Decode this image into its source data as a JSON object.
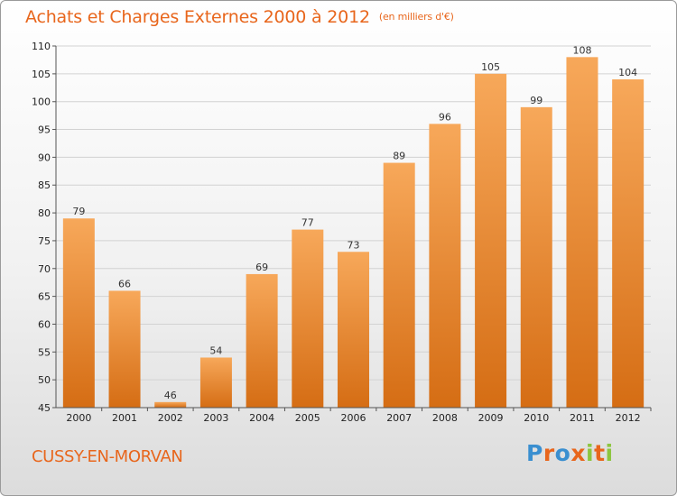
{
  "header": {
    "title": "Achats et Charges Externes 2000 à 2012",
    "subtitle": "(en milliers d'€)"
  },
  "footer": {
    "commune": "CUSSY-EN-MORVAN",
    "logo_letters": [
      "P",
      "r",
      "o",
      "x",
      "i",
      "t",
      "i"
    ],
    "logo_colors": [
      "#3a8fd0",
      "#e8661c",
      "#3a8fd0",
      "#e8661c",
      "#8cc63f",
      "#e8661c",
      "#8cc63f"
    ]
  },
  "colors": {
    "accent": "#e8661c",
    "bar_light": "#f7a85a",
    "bar_dark": "#d56d14"
  },
  "chart_data": {
    "type": "bar",
    "title": "Achats et Charges Externes 2000 à 2012",
    "subtitle": "(en milliers d'€)",
    "categories": [
      "2000",
      "2001",
      "2002",
      "2003",
      "2004",
      "2005",
      "2006",
      "2007",
      "2008",
      "2009",
      "2010",
      "2011",
      "2012"
    ],
    "values": [
      79,
      66,
      46,
      54,
      69,
      77,
      73,
      89,
      96,
      105,
      99,
      108,
      104
    ],
    "ylim": [
      45,
      110
    ],
    "yticks": [
      45,
      50,
      55,
      60,
      65,
      70,
      75,
      80,
      85,
      90,
      95,
      100,
      105,
      110
    ],
    "grid": true,
    "data_labels": true
  }
}
